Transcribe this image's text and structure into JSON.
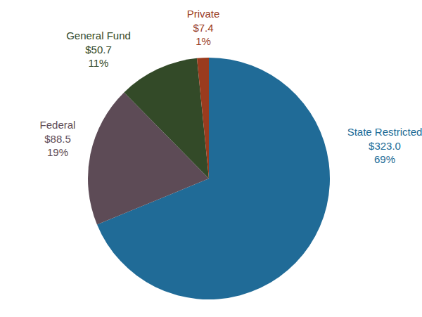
{
  "chart_data": {
    "type": "pie",
    "categories": [
      "State Restricted",
      "Federal",
      "General Fund",
      "Private"
    ],
    "values": [
      323.0,
      88.5,
      50.7,
      7.4
    ],
    "value_labels": [
      "$323.0",
      "$88.5",
      "$50.7",
      "$7.4"
    ],
    "percents": [
      69,
      19,
      11,
      1
    ],
    "percent_labels": [
      "69%",
      "19%",
      "11%",
      "1%"
    ],
    "colors": [
      "#206b97",
      "#5d4b56",
      "#334a28",
      "#9a3b1e"
    ],
    "data_labels": true
  }
}
